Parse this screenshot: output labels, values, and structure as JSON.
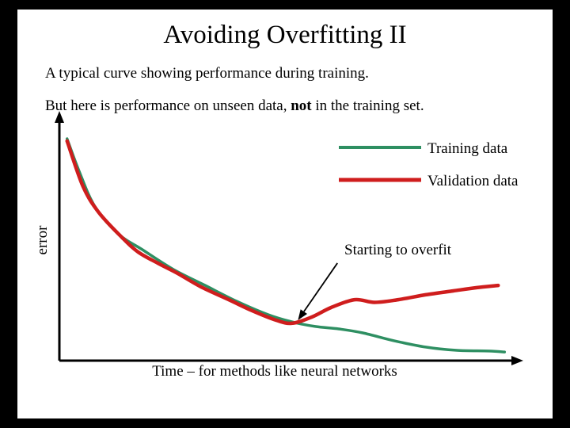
{
  "slide": {
    "title": "Avoiding Overfitting II",
    "line1": "A typical curve showing performance during training.",
    "line2_prefix": "But here is performance on unseen data, ",
    "line2_bold": "not",
    "line2_suffix": " in the training set."
  },
  "chart_data": {
    "type": "line",
    "title": "",
    "xlabel": "Time – for methods like neural networks",
    "ylabel": "error",
    "grid": false,
    "legend_position": "top-right",
    "annotation": "Starting to overfit",
    "annotation_arrow": {
      "from": [
        0.614,
        0.397
      ],
      "to": [
        0.527,
        0.165
      ]
    },
    "axes": {
      "x_ticks": [],
      "y_ticks": [],
      "xlim": [
        0,
        1
      ],
      "ylim": [
        0,
        1
      ]
    },
    "series": [
      {
        "id": "training",
        "name": "Training data",
        "color": "#2e8f62",
        "width": 3.5,
        "points": [
          [
            0.017,
            0.903
          ],
          [
            0.043,
            0.774
          ],
          [
            0.078,
            0.629
          ],
          [
            0.13,
            0.516
          ],
          [
            0.183,
            0.452
          ],
          [
            0.252,
            0.371
          ],
          [
            0.322,
            0.306
          ],
          [
            0.391,
            0.242
          ],
          [
            0.461,
            0.187
          ],
          [
            0.513,
            0.158
          ],
          [
            0.565,
            0.139
          ],
          [
            0.617,
            0.129
          ],
          [
            0.67,
            0.113
          ],
          [
            0.739,
            0.081
          ],
          [
            0.809,
            0.055
          ],
          [
            0.878,
            0.042
          ],
          [
            0.948,
            0.039
          ],
          [
            0.983,
            0.035
          ]
        ]
      },
      {
        "id": "validation",
        "name": "Validation data",
        "color": "#cf1d1d",
        "width": 4.5,
        "points": [
          [
            0.017,
            0.894
          ],
          [
            0.052,
            0.71
          ],
          [
            0.087,
            0.603
          ],
          [
            0.139,
            0.5
          ],
          [
            0.174,
            0.442
          ],
          [
            0.217,
            0.397
          ],
          [
            0.261,
            0.355
          ],
          [
            0.313,
            0.3
          ],
          [
            0.374,
            0.248
          ],
          [
            0.426,
            0.203
          ],
          [
            0.478,
            0.165
          ],
          [
            0.513,
            0.152
          ],
          [
            0.557,
            0.177
          ],
          [
            0.6,
            0.216
          ],
          [
            0.652,
            0.248
          ],
          [
            0.696,
            0.237
          ],
          [
            0.748,
            0.248
          ],
          [
            0.809,
            0.268
          ],
          [
            0.87,
            0.284
          ],
          [
            0.922,
            0.297
          ],
          [
            0.969,
            0.306
          ]
        ]
      }
    ]
  }
}
